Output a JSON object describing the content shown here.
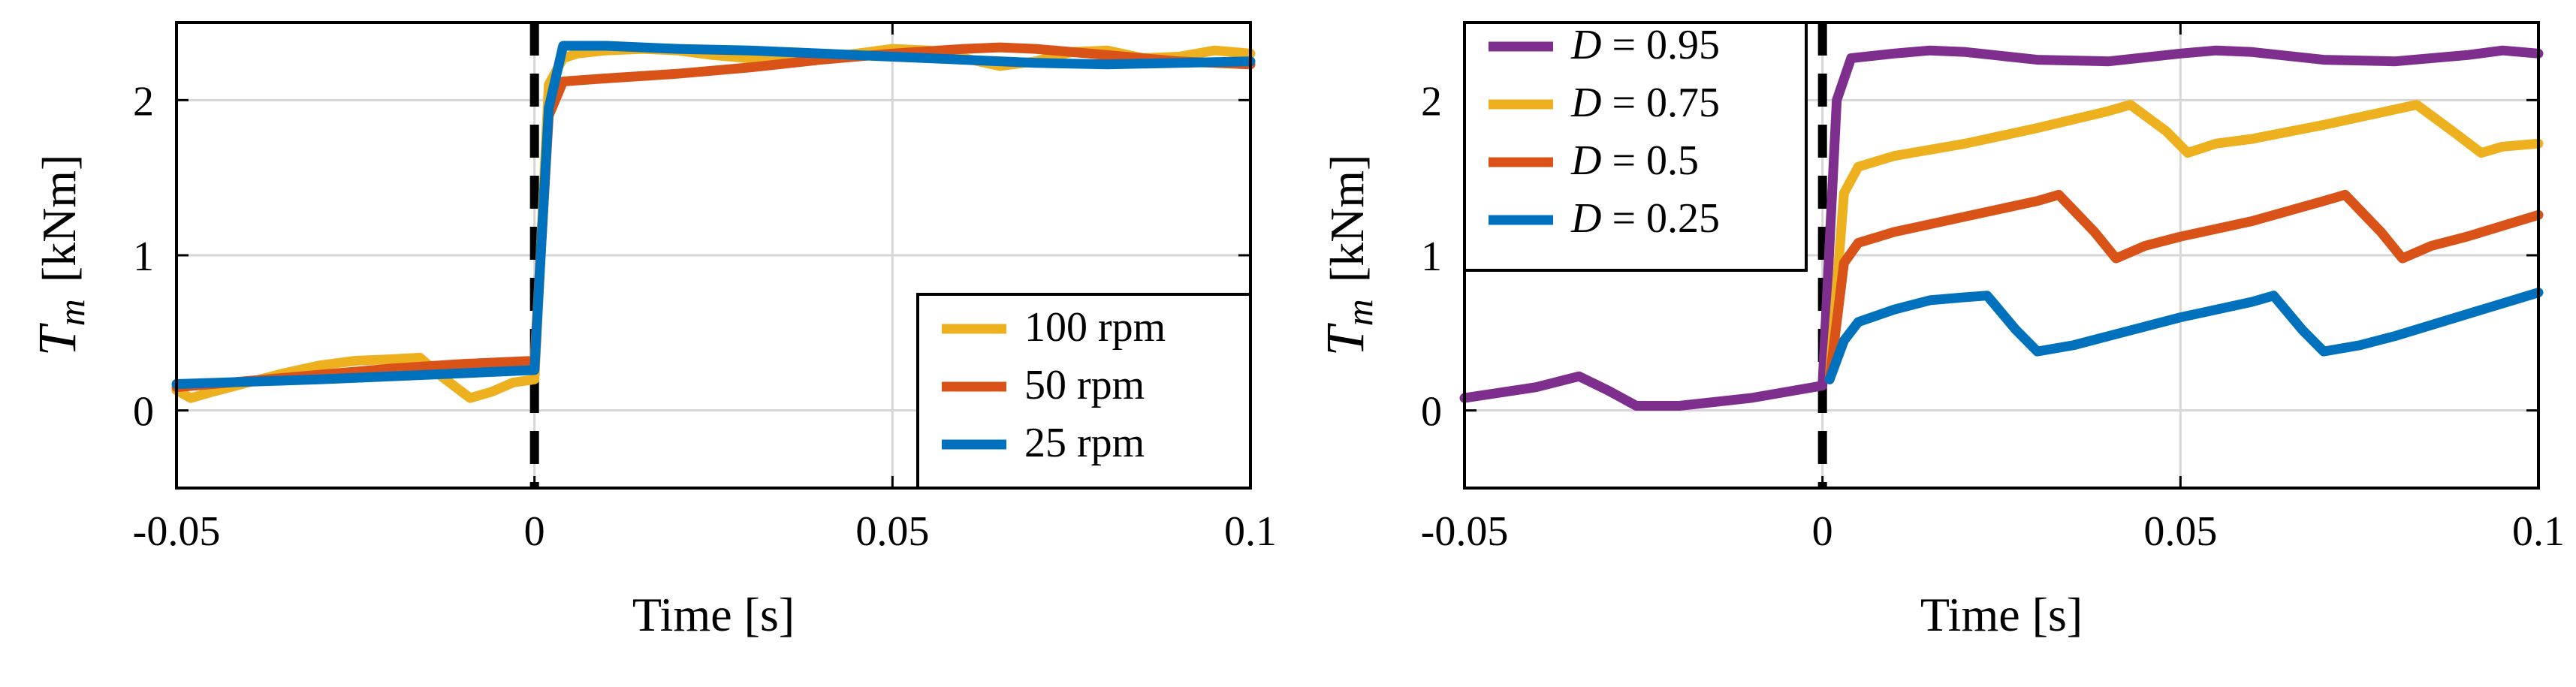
{
  "chart_data": [
    {
      "type": "line",
      "id": "left",
      "title": "",
      "xlabel": "Time [s]",
      "ylabel_symbol": "T",
      "ylabel_sub": "m",
      "ylabel_unit": "[kNm]",
      "xlim": [
        -0.05,
        0.1
      ],
      "ylim": [
        -0.5,
        2.5
      ],
      "xticks": [
        -0.05,
        0,
        0.05,
        0.1
      ],
      "xtick_labels": [
        "-0.05",
        "0",
        "0.05",
        "0.1"
      ],
      "yticks": [
        0,
        1,
        2
      ],
      "ytick_labels": [
        "0",
        "1",
        "2"
      ],
      "grid": true,
      "step_time": 0,
      "legend": {
        "position": "bottom-right"
      },
      "series": [
        {
          "name": "100 rpm",
          "color": "#EDB120",
          "x": [
            -0.05,
            -0.048,
            -0.045,
            -0.04,
            -0.035,
            -0.03,
            -0.025,
            -0.02,
            -0.016,
            -0.013,
            -0.009,
            -0.006,
            -0.003,
            0,
            0.002,
            0.004,
            0.006,
            0.01,
            0.015,
            0.02,
            0.025,
            0.03,
            0.035,
            0.04,
            0.045,
            0.05,
            0.055,
            0.06,
            0.065,
            0.07,
            0.075,
            0.08,
            0.085,
            0.09,
            0.095,
            0.1
          ],
          "y": [
            0.13,
            0.08,
            0.12,
            0.18,
            0.24,
            0.29,
            0.32,
            0.33,
            0.34,
            0.22,
            0.08,
            0.12,
            0.18,
            0.2,
            2.1,
            2.27,
            2.3,
            2.32,
            2.33,
            2.32,
            2.29,
            2.27,
            2.25,
            2.27,
            2.3,
            2.33,
            2.32,
            2.27,
            2.22,
            2.25,
            2.31,
            2.32,
            2.27,
            2.28,
            2.32,
            2.3
          ]
        },
        {
          "name": "50 rpm",
          "color": "#D95319",
          "x": [
            -0.05,
            -0.04,
            -0.03,
            -0.02,
            -0.01,
            0,
            0.002,
            0.004,
            0.01,
            0.02,
            0.03,
            0.04,
            0.05,
            0.06,
            0.065,
            0.07,
            0.08,
            0.09,
            0.1
          ],
          "y": [
            0.15,
            0.19,
            0.23,
            0.27,
            0.3,
            0.32,
            1.9,
            2.12,
            2.14,
            2.17,
            2.21,
            2.26,
            2.3,
            2.33,
            2.34,
            2.33,
            2.29,
            2.25,
            2.23
          ]
        },
        {
          "name": "25 rpm",
          "color": "#0072BD",
          "x": [
            -0.05,
            -0.03,
            -0.01,
            0,
            0.002,
            0.004,
            0.01,
            0.02,
            0.03,
            0.04,
            0.05,
            0.06,
            0.07,
            0.08,
            0.09,
            0.1
          ],
          "y": [
            0.17,
            0.2,
            0.24,
            0.26,
            1.95,
            2.35,
            2.35,
            2.33,
            2.32,
            2.3,
            2.28,
            2.26,
            2.24,
            2.23,
            2.24,
            2.25
          ]
        }
      ]
    },
    {
      "type": "line",
      "id": "right",
      "title": "",
      "xlabel": "Time [s]",
      "ylabel_symbol": "T",
      "ylabel_sub": "m",
      "ylabel_unit": "[kNm]",
      "xlim": [
        -0.05,
        0.1
      ],
      "ylim": [
        -0.5,
        2.5
      ],
      "xticks": [
        -0.05,
        0,
        0.05,
        0.1
      ],
      "xtick_labels": [
        "-0.05",
        "0",
        "0.05",
        "0.1"
      ],
      "yticks": [
        0,
        1,
        2
      ],
      "ytick_labels": [
        "0",
        "1",
        "2"
      ],
      "grid": true,
      "step_time": 0,
      "legend": {
        "position": "top-left"
      },
      "series": [
        {
          "name": "D = 0.95",
          "legend_symbol": "D",
          "legend_value": " = 0.95",
          "color": "#7E2F8E",
          "x": [
            -0.05,
            -0.04,
            -0.034,
            -0.03,
            -0.026,
            -0.02,
            -0.01,
            0,
            0.002,
            0.004,
            0.01,
            0.015,
            0.02,
            0.03,
            0.04,
            0.05,
            0.055,
            0.06,
            0.07,
            0.08,
            0.09,
            0.095,
            0.1
          ],
          "y": [
            0.08,
            0.15,
            0.22,
            0.13,
            0.03,
            0.03,
            0.08,
            0.16,
            2.0,
            2.27,
            2.3,
            2.32,
            2.31,
            2.26,
            2.25,
            2.3,
            2.32,
            2.31,
            2.26,
            2.25,
            2.29,
            2.32,
            2.3
          ]
        },
        {
          "name": "D = 0.75",
          "legend_symbol": "D",
          "legend_value": " = 0.75",
          "color": "#EDB120",
          "x": [
            0.001,
            0.003,
            0.005,
            0.01,
            0.02,
            0.03,
            0.04,
            0.043,
            0.048,
            0.051,
            0.055,
            0.06,
            0.07,
            0.08,
            0.083,
            0.088,
            0.092,
            0.095,
            0.1
          ],
          "y": [
            0.2,
            1.4,
            1.57,
            1.64,
            1.72,
            1.82,
            1.93,
            1.97,
            1.8,
            1.66,
            1.72,
            1.75,
            1.84,
            1.94,
            1.97,
            1.8,
            1.66,
            1.7,
            1.72
          ]
        },
        {
          "name": "D = 0.5",
          "legend_symbol": "D",
          "legend_value": " = 0.5",
          "color": "#D95319",
          "x": [
            0.001,
            0.003,
            0.005,
            0.01,
            0.02,
            0.03,
            0.033,
            0.038,
            0.041,
            0.045,
            0.05,
            0.06,
            0.07,
            0.073,
            0.078,
            0.081,
            0.085,
            0.09,
            0.1
          ],
          "y": [
            0.2,
            0.95,
            1.08,
            1.15,
            1.25,
            1.35,
            1.39,
            1.15,
            0.98,
            1.06,
            1.12,
            1.22,
            1.35,
            1.39,
            1.15,
            0.98,
            1.06,
            1.12,
            1.26
          ]
        },
        {
          "name": "D = 0.25",
          "legend_symbol": "D",
          "legend_value": " = 0.25",
          "color": "#0072BD",
          "x": [
            0.001,
            0.003,
            0.005,
            0.01,
            0.015,
            0.02,
            0.023,
            0.027,
            0.03,
            0.035,
            0.04,
            0.05,
            0.06,
            0.063,
            0.067,
            0.07,
            0.075,
            0.08,
            0.09,
            0.1
          ],
          "y": [
            0.2,
            0.45,
            0.57,
            0.65,
            0.71,
            0.73,
            0.74,
            0.52,
            0.38,
            0.42,
            0.48,
            0.6,
            0.7,
            0.74,
            0.52,
            0.38,
            0.42,
            0.48,
            0.62,
            0.76
          ]
        }
      ]
    }
  ]
}
